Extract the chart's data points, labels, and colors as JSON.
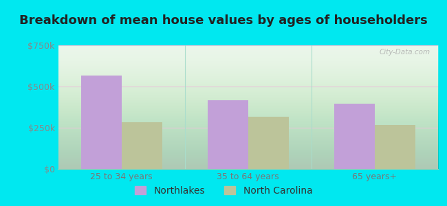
{
  "title": "Breakdown of mean house values by ages of householders",
  "categories": [
    "25 to 34 years",
    "35 to 64 years",
    "65 years+"
  ],
  "northlakes_values": [
    565000,
    415000,
    395000
  ],
  "nc_values": [
    285000,
    315000,
    265000
  ],
  "ylim": [
    0,
    750000
  ],
  "yticks": [
    0,
    250000,
    500000,
    750000
  ],
  "ytick_labels": [
    "$0",
    "$250k",
    "$500k",
    "$750k"
  ],
  "northlakes_color": "#c2a0d8",
  "nc_color": "#bcc49a",
  "bar_width": 0.32,
  "background_outer": "#00e8f0",
  "background_inner": "#dff2df",
  "legend_northlakes": "Northlakes",
  "legend_nc": "North Carolina",
  "title_fontsize": 13,
  "tick_fontsize": 9,
  "legend_fontsize": 10,
  "grid_color": "#e8c8d8",
  "separator_color": "#aaddcc",
  "watermark": "City-Data.com"
}
